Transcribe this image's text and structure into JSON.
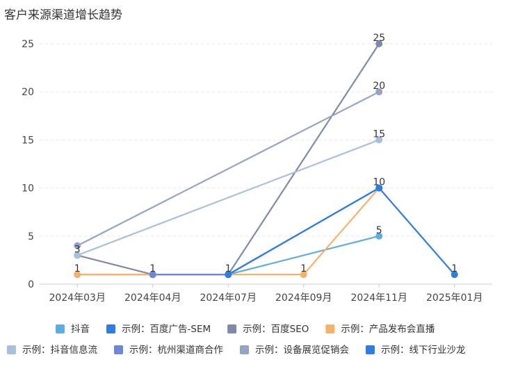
{
  "chart_data": {
    "type": "line",
    "title": "客户来源渠道增长趋势",
    "categories": [
      "2024年03月",
      "2024年04月",
      "2024年07月",
      "2024年09月",
      "2024年11月",
      "2025年01月"
    ],
    "ylim": [
      0,
      25
    ],
    "yticks": [
      0,
      5,
      10,
      15,
      20,
      25
    ],
    "grid": "horizontal-dashed",
    "legend_position": "bottom",
    "series": [
      {
        "name": "抖音",
        "color": "#5dade2",
        "values": [
          1,
          1,
          1,
          null,
          5,
          null
        ]
      },
      {
        "name": "示例：百度广告-SEM",
        "color": "#2e7de0",
        "values": [
          null,
          1,
          1,
          null,
          10,
          1
        ]
      },
      {
        "name": "示例：百度SEO",
        "color": "#7e8aa8",
        "values": [
          3,
          1,
          1,
          null,
          25,
          null
        ]
      },
      {
        "name": "示例：产品发布会直播",
        "color": "#f5b26b",
        "values": [
          1,
          1,
          1,
          1,
          10,
          null
        ]
      },
      {
        "name": "示例：抖音信息流",
        "color": "#a9c0dc",
        "values": [
          3,
          null,
          null,
          null,
          15,
          null
        ]
      },
      {
        "name": "示例：杭州渠道商合作",
        "color": "#6a87d9",
        "values": [
          null,
          1,
          1,
          null,
          10,
          null
        ]
      },
      {
        "name": "示例：设备展览促销会",
        "color": "#94a3c6",
        "values": [
          4,
          null,
          null,
          null,
          20,
          null
        ]
      },
      {
        "name": "示例：线下行业沙龙",
        "color": "#2e7de0",
        "values": [
          null,
          null,
          1,
          null,
          10,
          null
        ]
      }
    ],
    "data_labels": [
      {
        "category": "2024年03月",
        "text": "3"
      },
      {
        "category": "2024年03月",
        "text": "1"
      },
      {
        "category": "2024年04月",
        "text": "1"
      },
      {
        "category": "2024年07月",
        "text": "1"
      },
      {
        "category": "2024年09月",
        "text": "1"
      },
      {
        "category": "2024年11月",
        "text": "25"
      },
      {
        "category": "2024年11月",
        "text": "20"
      },
      {
        "category": "2024年11月",
        "text": "15"
      },
      {
        "category": "2024年11月",
        "text": "10"
      },
      {
        "category": "2024年11月",
        "text": "5"
      },
      {
        "category": "2025年01月",
        "text": "1"
      }
    ]
  }
}
